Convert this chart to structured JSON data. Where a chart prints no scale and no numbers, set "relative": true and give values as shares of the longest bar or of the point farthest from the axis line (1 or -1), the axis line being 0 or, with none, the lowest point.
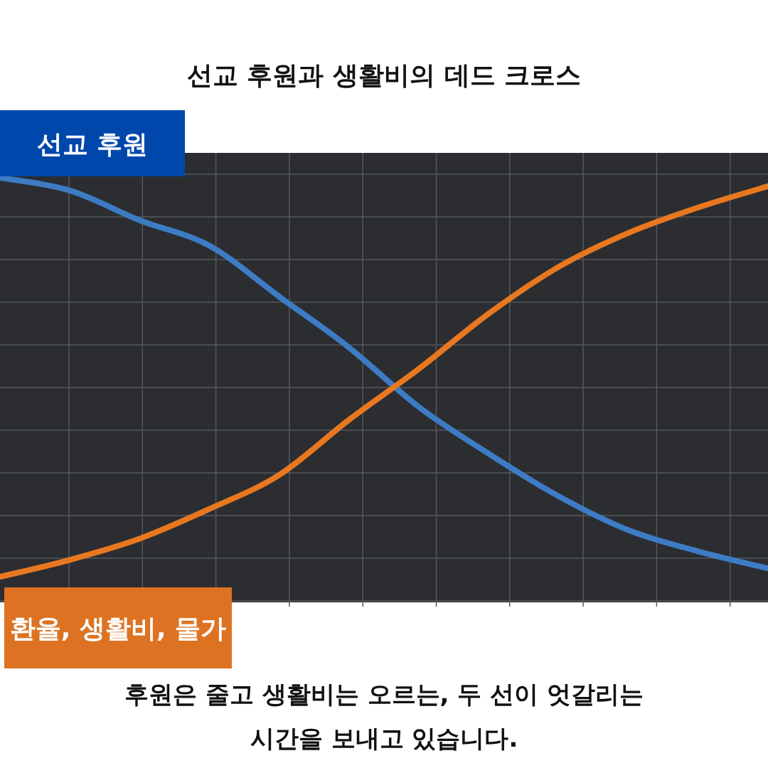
{
  "chart_data": {
    "type": "line",
    "title": "선교 후원과 생활비의 데드 크로스",
    "relative": true,
    "grid": true,
    "marker": "none",
    "line_style": "solid",
    "categories": [
      null,
      null,
      null,
      null,
      null,
      null,
      null,
      null,
      null,
      null,
      null,
      null
    ],
    "series": [
      {
        "name": "선교 후원",
        "color": "#3d7cc4",
        "values": [
          1.0,
          0.97,
          0.9,
          0.84,
          0.72,
          0.6,
          0.46,
          0.35,
          0.25,
          0.17,
          0.12,
          0.08
        ]
      },
      {
        "name": "환율, 생활비, 물가",
        "color": "#e8781f",
        "values": [
          0.06,
          0.1,
          0.15,
          0.22,
          0.3,
          0.43,
          0.55,
          0.68,
          0.79,
          0.87,
          0.93,
          0.98
        ]
      }
    ],
    "annotations": [
      "후원은 줄고 생활비는 오르는, 두 선이 엇갈리는",
      "시간을 보내고 있습니다."
    ]
  }
}
